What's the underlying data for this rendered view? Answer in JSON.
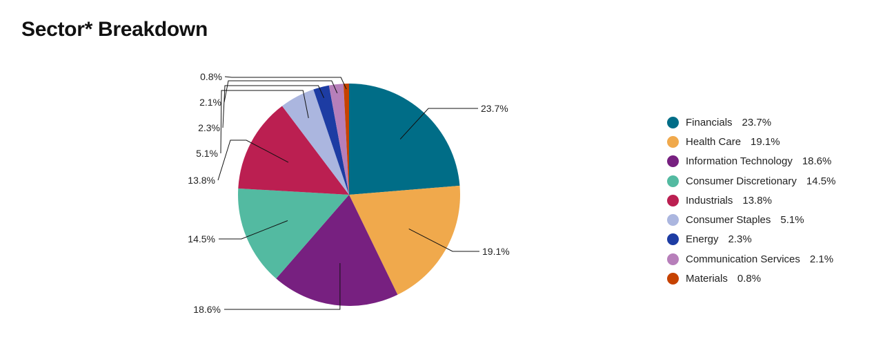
{
  "chart_data": {
    "type": "pie",
    "title": "Sector* Breakdown",
    "start_angle_deg": 0,
    "direction": "clockwise",
    "legend_position": "right",
    "slices": [
      {
        "name": "Financials",
        "value": 23.7,
        "label": "23.7%",
        "color": "#006d87"
      },
      {
        "name": "Health Care",
        "value": 19.1,
        "label": "19.1%",
        "color": "#f0a94c"
      },
      {
        "name": "Information Technology",
        "value": 18.6,
        "label": "18.6%",
        "color": "#772080"
      },
      {
        "name": "Consumer Discretionary",
        "value": 14.5,
        "label": "14.5%",
        "color": "#53baa1"
      },
      {
        "name": "Industrials",
        "value": 13.8,
        "label": "13.8%",
        "color": "#bb1f51"
      },
      {
        "name": "Consumer Staples",
        "value": 5.1,
        "label": "5.1%",
        "color": "#abb6df"
      },
      {
        "name": "Energy",
        "value": 2.3,
        "label": "2.3%",
        "color": "#1d3ca3"
      },
      {
        "name": "Communication Services",
        "value": 2.1,
        "label": "2.1%",
        "color": "#b77fba"
      },
      {
        "name": "Materials",
        "value": 0.8,
        "label": "0.8%",
        "color": "#c64200"
      }
    ]
  }
}
